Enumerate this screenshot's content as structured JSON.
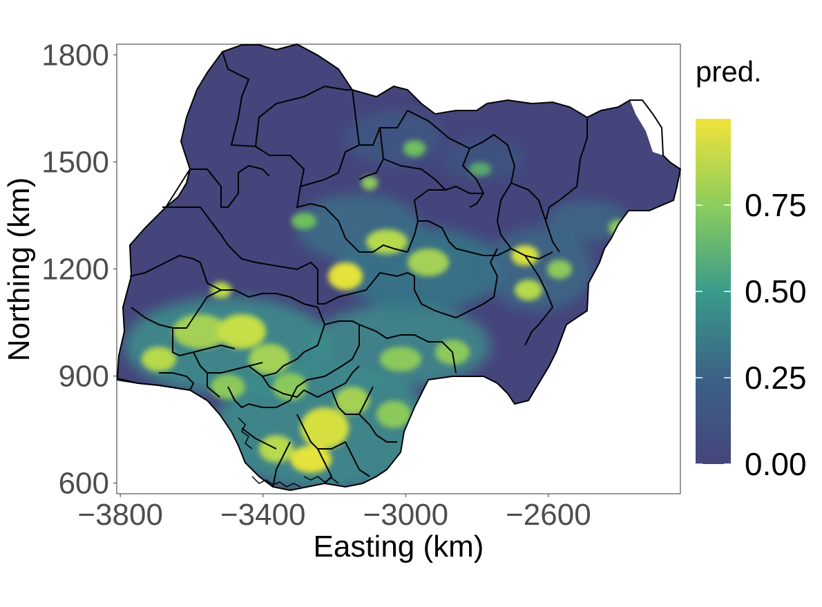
{
  "map": {
    "xlabel": "Easting (km)",
    "ylabel": "Northing (km)",
    "xlim": [
      -3810,
      -2230
    ],
    "ylim": [
      570,
      1830
    ],
    "x_ticks": [
      -3800,
      -3400,
      -3000,
      -2600
    ],
    "x_tick_labels": [
      "−3800",
      "−3400",
      "−3000",
      "−2600"
    ],
    "y_ticks": [
      600,
      900,
      1200,
      1500,
      1800
    ],
    "y_tick_labels": [
      "600",
      "900",
      "1200",
      "1500",
      "1800"
    ],
    "grid": false,
    "colormap": "viridis",
    "background_color": "#45457c"
  },
  "legend": {
    "title": "pred.",
    "placement": "right",
    "range": [
      0,
      1
    ],
    "ticks": [
      0,
      0.25,
      0.5,
      0.75
    ],
    "tick_labels": [
      "0.00",
      "0.25",
      "0.50",
      "0.75"
    ],
    "colors": [
      "#440154",
      "#3b528b",
      "#21908d",
      "#5dc963",
      "#fde725"
    ]
  }
}
